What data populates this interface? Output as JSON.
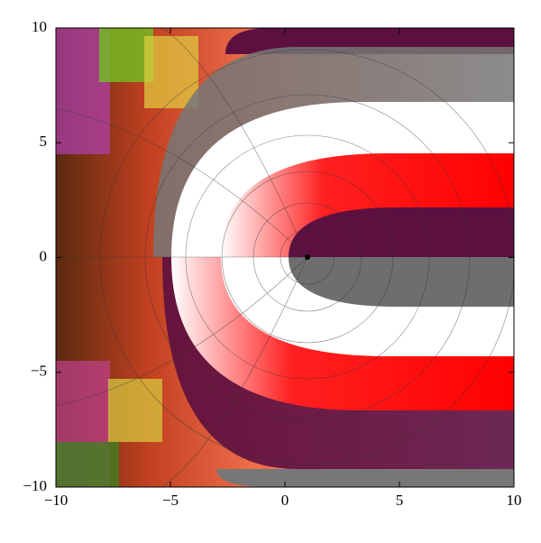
{
  "chart_data": {
    "type": "domain-coloring",
    "xlim": [
      -10,
      10
    ],
    "ylim": [
      -10,
      10
    ],
    "xticks": [
      {
        "value": -10,
        "label": "−10"
      },
      {
        "value": -5,
        "label": "−5"
      },
      0,
      5,
      10
    ],
    "yticks": [
      {
        "value": -10,
        "label": "−10"
      },
      {
        "value": -5,
        "label": "−5"
      },
      0,
      5,
      10
    ]
  }
}
